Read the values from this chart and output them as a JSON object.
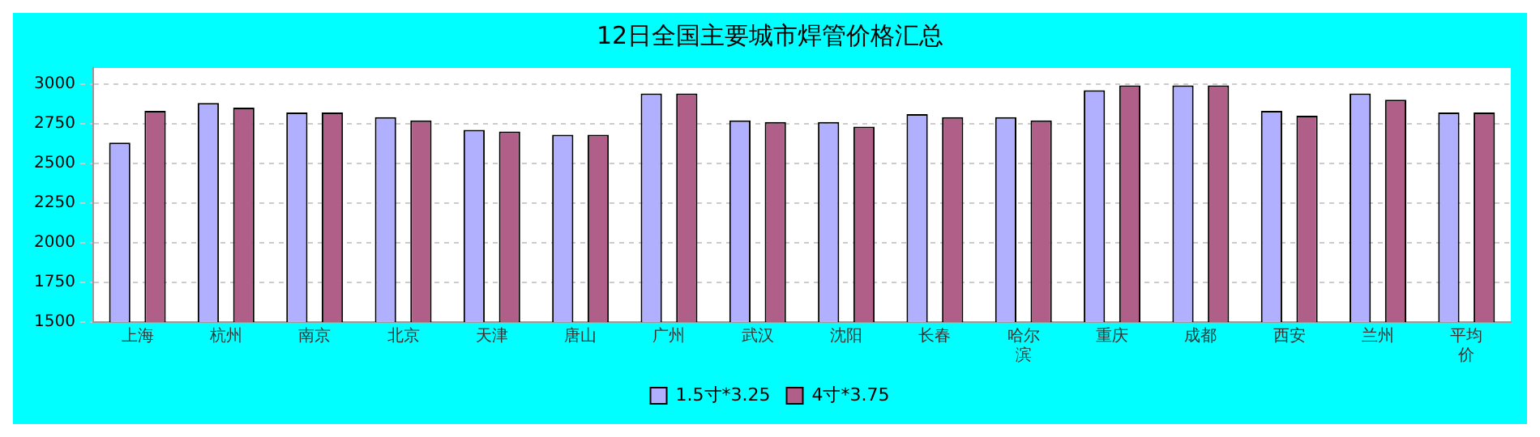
{
  "chart_data": {
    "type": "bar",
    "title": "12日全国主要城市焊管价格汇总",
    "categories": [
      "上海",
      "杭州",
      "南京",
      "北京",
      "天津",
      "唐山",
      "广州",
      "武汉",
      "沈阳",
      "长春",
      "哈尔滨",
      "重庆",
      "成都",
      "西安",
      "兰州",
      "平均价"
    ],
    "series": [
      {
        "name": "1.5寸*3.25",
        "color": "#b0b0ff",
        "values": [
          2630,
          2880,
          2820,
          2790,
          2710,
          2680,
          2940,
          2770,
          2760,
          2810,
          2790,
          2960,
          2990,
          2830,
          2940,
          2820
        ]
      },
      {
        "name": "4寸*3.75",
        "color": "#b06088",
        "values": [
          2830,
          2850,
          2820,
          2770,
          2700,
          2680,
          2940,
          2760,
          2730,
          2790,
          2770,
          2990,
          2990,
          2800,
          2900,
          2820
        ]
      }
    ],
    "ylim": [
      1500,
      3100
    ],
    "yticks": [
      1500,
      1750,
      2000,
      2250,
      2500,
      2750,
      3000
    ],
    "grid": "y",
    "legend": "bottom"
  }
}
